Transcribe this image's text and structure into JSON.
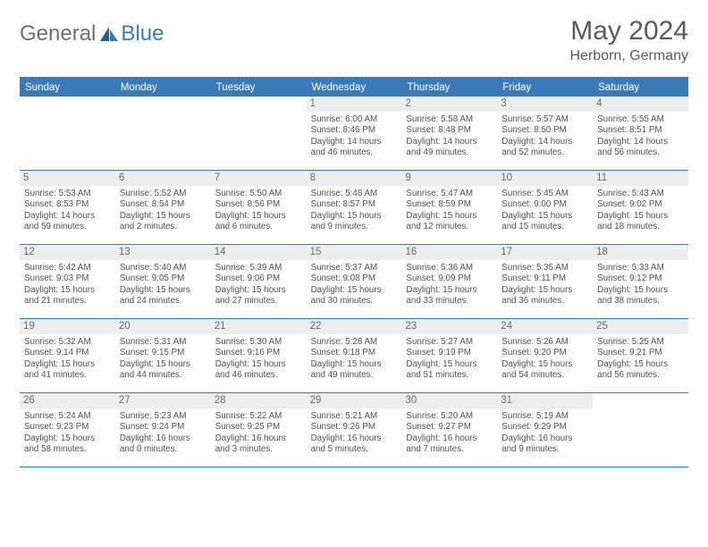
{
  "logo": {
    "part1": "General",
    "part2": "Blue"
  },
  "title": "May 2024",
  "location": "Herborn, Germany",
  "colors": {
    "header_bar": "#3a7ab8",
    "daynum_bg": "#ededed",
    "text_gray": "#5a5a5a",
    "logo_gray": "#6f6f6f",
    "logo_blue": "#3a7ab8"
  },
  "days_of_week": [
    "Sunday",
    "Monday",
    "Tuesday",
    "Wednesday",
    "Thursday",
    "Friday",
    "Saturday"
  ],
  "weeks": [
    [
      null,
      null,
      null,
      {
        "n": "1",
        "sr": "6:00 AM",
        "ss": "8:46 PM",
        "dh": "14",
        "dm": "46"
      },
      {
        "n": "2",
        "sr": "5:58 AM",
        "ss": "8:48 PM",
        "dh": "14",
        "dm": "49"
      },
      {
        "n": "3",
        "sr": "5:57 AM",
        "ss": "8:50 PM",
        "dh": "14",
        "dm": "52"
      },
      {
        "n": "4",
        "sr": "5:55 AM",
        "ss": "8:51 PM",
        "dh": "14",
        "dm": "56"
      }
    ],
    [
      {
        "n": "5",
        "sr": "5:53 AM",
        "ss": "8:53 PM",
        "dh": "14",
        "dm": "59"
      },
      {
        "n": "6",
        "sr": "5:52 AM",
        "ss": "8:54 PM",
        "dh": "15",
        "dm": "2"
      },
      {
        "n": "7",
        "sr": "5:50 AM",
        "ss": "8:56 PM",
        "dh": "15",
        "dm": "6"
      },
      {
        "n": "8",
        "sr": "5:48 AM",
        "ss": "8:57 PM",
        "dh": "15",
        "dm": "9"
      },
      {
        "n": "9",
        "sr": "5:47 AM",
        "ss": "8:59 PM",
        "dh": "15",
        "dm": "12"
      },
      {
        "n": "10",
        "sr": "5:45 AM",
        "ss": "9:00 PM",
        "dh": "15",
        "dm": "15"
      },
      {
        "n": "11",
        "sr": "5:43 AM",
        "ss": "9:02 PM",
        "dh": "15",
        "dm": "18"
      }
    ],
    [
      {
        "n": "12",
        "sr": "5:42 AM",
        "ss": "9:03 PM",
        "dh": "15",
        "dm": "21"
      },
      {
        "n": "13",
        "sr": "5:40 AM",
        "ss": "9:05 PM",
        "dh": "15",
        "dm": "24"
      },
      {
        "n": "14",
        "sr": "5:39 AM",
        "ss": "9:06 PM",
        "dh": "15",
        "dm": "27"
      },
      {
        "n": "15",
        "sr": "5:37 AM",
        "ss": "9:08 PM",
        "dh": "15",
        "dm": "30"
      },
      {
        "n": "16",
        "sr": "5:36 AM",
        "ss": "9:09 PM",
        "dh": "15",
        "dm": "33"
      },
      {
        "n": "17",
        "sr": "5:35 AM",
        "ss": "9:11 PM",
        "dh": "15",
        "dm": "36"
      },
      {
        "n": "18",
        "sr": "5:33 AM",
        "ss": "9:12 PM",
        "dh": "15",
        "dm": "38"
      }
    ],
    [
      {
        "n": "19",
        "sr": "5:32 AM",
        "ss": "9:14 PM",
        "dh": "15",
        "dm": "41"
      },
      {
        "n": "20",
        "sr": "5:31 AM",
        "ss": "9:15 PM",
        "dh": "15",
        "dm": "44"
      },
      {
        "n": "21",
        "sr": "5:30 AM",
        "ss": "9:16 PM",
        "dh": "15",
        "dm": "46"
      },
      {
        "n": "22",
        "sr": "5:28 AM",
        "ss": "9:18 PM",
        "dh": "15",
        "dm": "49"
      },
      {
        "n": "23",
        "sr": "5:27 AM",
        "ss": "9:19 PM",
        "dh": "15",
        "dm": "51"
      },
      {
        "n": "24",
        "sr": "5:26 AM",
        "ss": "9:20 PM",
        "dh": "15",
        "dm": "54"
      },
      {
        "n": "25",
        "sr": "5:25 AM",
        "ss": "9:21 PM",
        "dh": "15",
        "dm": "56"
      }
    ],
    [
      {
        "n": "26",
        "sr": "5:24 AM",
        "ss": "9:23 PM",
        "dh": "15",
        "dm": "58"
      },
      {
        "n": "27",
        "sr": "5:23 AM",
        "ss": "9:24 PM",
        "dh": "16",
        "dm": "0"
      },
      {
        "n": "28",
        "sr": "5:22 AM",
        "ss": "9:25 PM",
        "dh": "16",
        "dm": "3"
      },
      {
        "n": "29",
        "sr": "5:21 AM",
        "ss": "9:26 PM",
        "dh": "16",
        "dm": "5"
      },
      {
        "n": "30",
        "sr": "5:20 AM",
        "ss": "9:27 PM",
        "dh": "16",
        "dm": "7"
      },
      {
        "n": "31",
        "sr": "5:19 AM",
        "ss": "9:29 PM",
        "dh": "16",
        "dm": "9"
      },
      null
    ]
  ]
}
